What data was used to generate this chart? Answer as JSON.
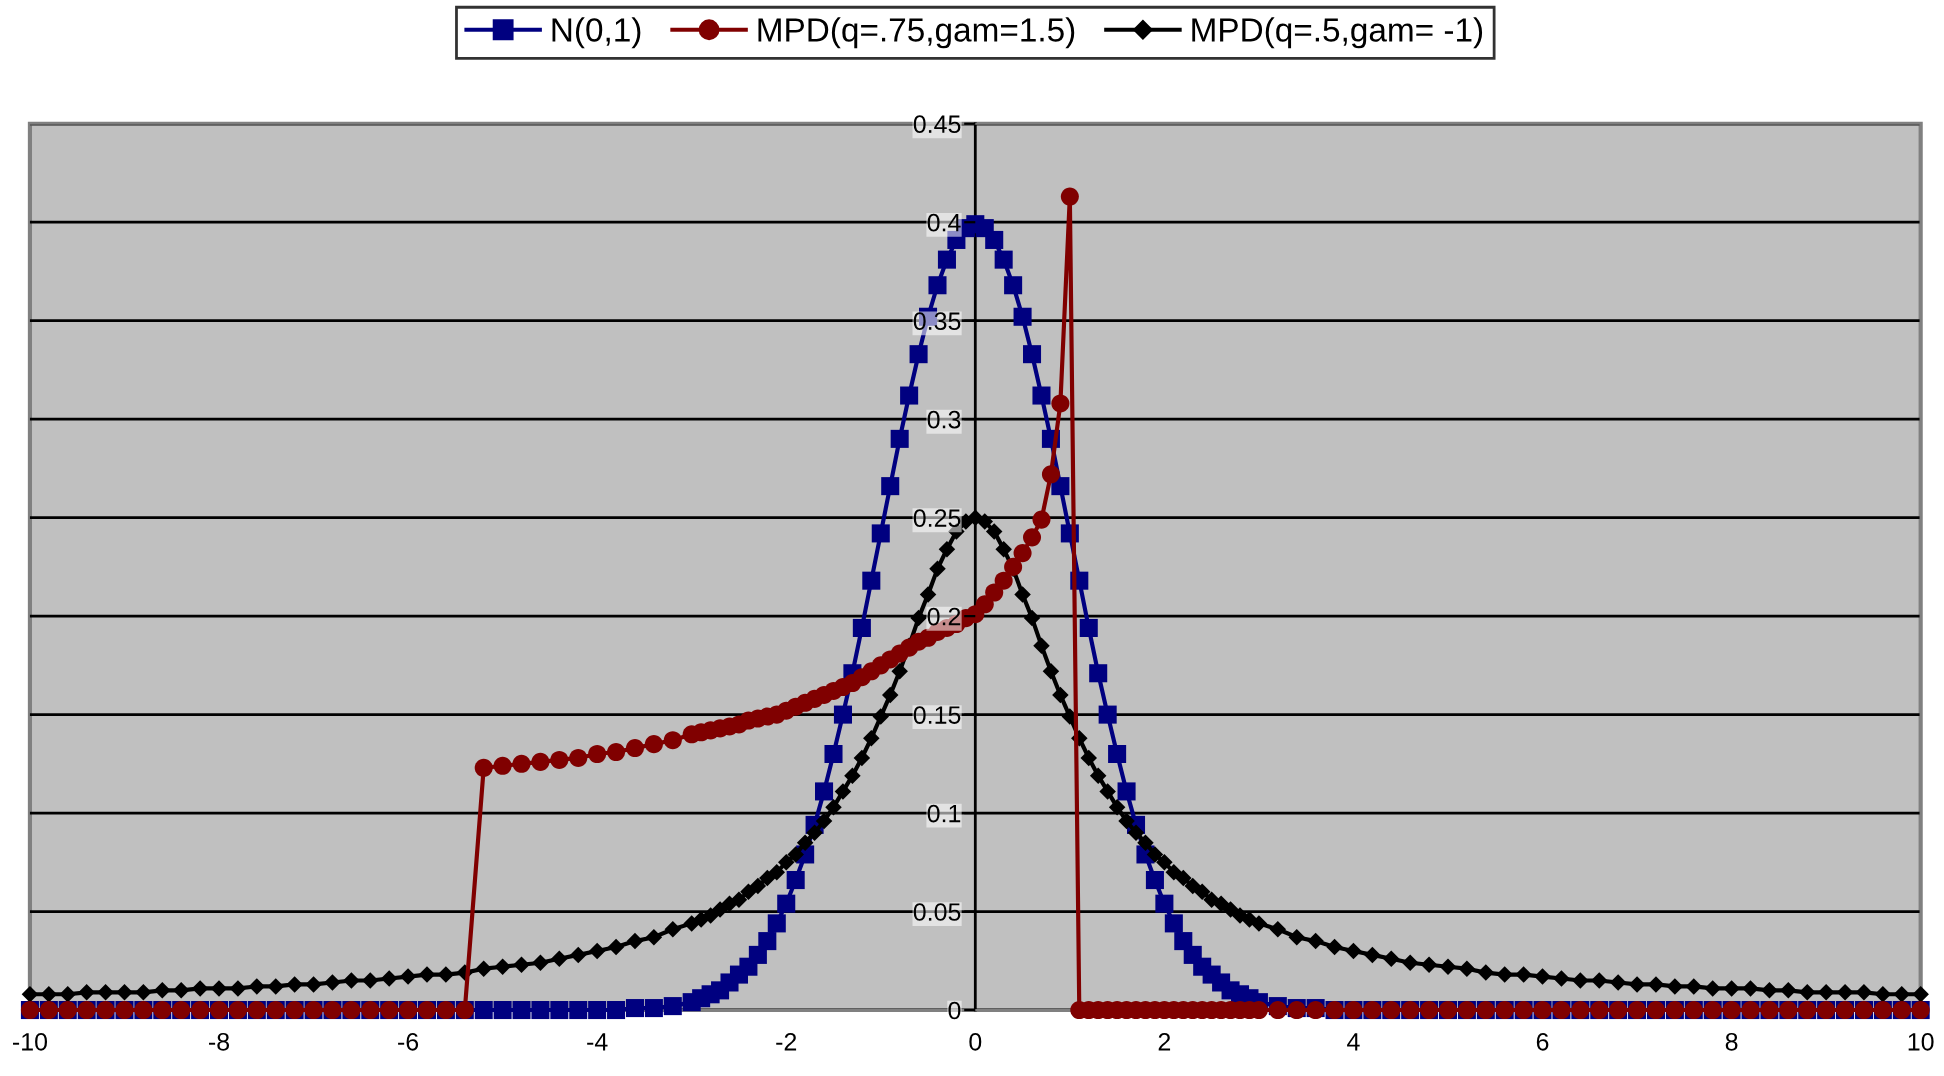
{
  "chart_data": {
    "type": "line",
    "x": [
      -10,
      -9.8,
      -9.6,
      -9.4,
      -9.2,
      -9,
      -8.8,
      -8.6,
      -8.4,
      -8.2,
      -8,
      -7.8,
      -7.6,
      -7.4,
      -7.2,
      -7,
      -6.8,
      -6.6,
      -6.4,
      -6.2,
      -6,
      -5.8,
      -5.6,
      -5.4,
      -5.2,
      -5,
      -4.8,
      -4.6,
      -4.4,
      -4.2,
      -4,
      -3.8,
      -3.6,
      -3.4,
      -3.2,
      -3,
      -2.9,
      -2.8,
      -2.7,
      -2.6,
      -2.5,
      -2.4,
      -2.3,
      -2.2,
      -2.1,
      -2,
      -1.9,
      -1.8,
      -1.7,
      -1.6,
      -1.5,
      -1.4,
      -1.3,
      -1.2,
      -1.1,
      -1,
      -0.9,
      -0.8,
      -0.7,
      -0.6,
      -0.5,
      -0.4,
      -0.3,
      -0.2,
      -0.1,
      0,
      0.1,
      0.2,
      0.3,
      0.4,
      0.5,
      0.6,
      0.7,
      0.8,
      0.9,
      1,
      1.1,
      1.2,
      1.3,
      1.4,
      1.5,
      1.6,
      1.7,
      1.8,
      1.9,
      2,
      2.1,
      2.2,
      2.3,
      2.4,
      2.5,
      2.6,
      2.7,
      2.8,
      2.9,
      3,
      3.2,
      3.4,
      3.6,
      3.8,
      4,
      4.2,
      4.4,
      4.6,
      4.8,
      5,
      5.2,
      5.4,
      5.6,
      5.8,
      6,
      6.2,
      6.4,
      6.6,
      6.8,
      7,
      7.2,
      7.4,
      7.6,
      7.8,
      8,
      8.2,
      8.4,
      8.6,
      8.8,
      9,
      9.2,
      9.4,
      9.6,
      9.8,
      10
    ],
    "series": [
      {
        "name": "N(0,1)",
        "color": "#000080",
        "marker": "square",
        "values": [
          0,
          0,
          0,
          0,
          0,
          0,
          0,
          0,
          0,
          0,
          0,
          0,
          0,
          0,
          0,
          0,
          0,
          0,
          0,
          0,
          0,
          0,
          0,
          0,
          0,
          0,
          0,
          0,
          0,
          0,
          0,
          0,
          0.001,
          0.001,
          0.002,
          0.004,
          0.006,
          0.008,
          0.01,
          0.014,
          0.018,
          0.022,
          0.028,
          0.035,
          0.044,
          0.054,
          0.066,
          0.079,
          0.094,
          0.111,
          0.13,
          0.15,
          0.171,
          0.194,
          0.218,
          0.242,
          0.266,
          0.29,
          0.312,
          0.333,
          0.352,
          0.368,
          0.381,
          0.391,
          0.397,
          0.399,
          0.397,
          0.391,
          0.381,
          0.368,
          0.352,
          0.333,
          0.312,
          0.29,
          0.266,
          0.242,
          0.218,
          0.194,
          0.171,
          0.15,
          0.13,
          0.111,
          0.094,
          0.079,
          0.066,
          0.054,
          0.044,
          0.035,
          0.028,
          0.022,
          0.018,
          0.014,
          0.01,
          0.008,
          0.006,
          0.004,
          0.002,
          0.001,
          0.001,
          0,
          0,
          0,
          0,
          0,
          0,
          0,
          0,
          0,
          0,
          0,
          0,
          0,
          0,
          0,
          0,
          0,
          0,
          0,
          0,
          0,
          0,
          0,
          0,
          0,
          0,
          0,
          0,
          0,
          0,
          0,
          0
        ]
      },
      {
        "name": "MPD(q=.75,gam=1.5)",
        "color": "#800000",
        "marker": "circle",
        "values": [
          0,
          0,
          0,
          0,
          0,
          0,
          0,
          0,
          0,
          0,
          0,
          0,
          0,
          0,
          0,
          0,
          0,
          0,
          0,
          0,
          0,
          0,
          0,
          0,
          0.123,
          0.124,
          0.125,
          0.126,
          0.127,
          0.128,
          0.13,
          0.131,
          0.133,
          0.135,
          0.137,
          0.14,
          0.141,
          0.142,
          0.143,
          0.144,
          0.145,
          0.147,
          0.148,
          0.149,
          0.15,
          0.152,
          0.154,
          0.156,
          0.158,
          0.16,
          0.162,
          0.164,
          0.166,
          0.169,
          0.172,
          0.175,
          0.178,
          0.181,
          0.184,
          0.187,
          0.189,
          0.192,
          0.194,
          0.196,
          0.199,
          0.201,
          0.206,
          0.212,
          0.218,
          0.225,
          0.232,
          0.24,
          0.249,
          0.272,
          0.308,
          0.413,
          0,
          0,
          0,
          0,
          0,
          0,
          0,
          0,
          0,
          0,
          0,
          0,
          0,
          0,
          0,
          0,
          0,
          0,
          0,
          0,
          0,
          0,
          0,
          0,
          0,
          0,
          0,
          0,
          0,
          0,
          0,
          0,
          0,
          0,
          0,
          0,
          0,
          0,
          0,
          0,
          0,
          0,
          0,
          0,
          0,
          0,
          0,
          0,
          0,
          0,
          0,
          0,
          0,
          0,
          0
        ]
      },
      {
        "name": "MPD(q=.5,gam= -1)",
        "color": "#000000",
        "marker": "diamond",
        "values": [
          0.008,
          0.008,
          0.008,
          0.009,
          0.009,
          0.009,
          0.009,
          0.01,
          0.01,
          0.011,
          0.011,
          0.011,
          0.012,
          0.012,
          0.013,
          0.013,
          0.014,
          0.015,
          0.015,
          0.016,
          0.017,
          0.018,
          0.018,
          0.019,
          0.021,
          0.022,
          0.023,
          0.024,
          0.026,
          0.028,
          0.03,
          0.032,
          0.035,
          0.037,
          0.041,
          0.044,
          0.046,
          0.048,
          0.051,
          0.054,
          0.056,
          0.06,
          0.063,
          0.067,
          0.07,
          0.075,
          0.079,
          0.085,
          0.09,
          0.096,
          0.103,
          0.111,
          0.119,
          0.128,
          0.138,
          0.149,
          0.16,
          0.172,
          0.185,
          0.199,
          0.211,
          0.224,
          0.234,
          0.243,
          0.248,
          0.25,
          0.248,
          0.243,
          0.234,
          0.224,
          0.211,
          0.199,
          0.185,
          0.172,
          0.16,
          0.149,
          0.138,
          0.128,
          0.119,
          0.111,
          0.103,
          0.096,
          0.09,
          0.085,
          0.079,
          0.075,
          0.07,
          0.067,
          0.063,
          0.06,
          0.056,
          0.054,
          0.051,
          0.048,
          0.046,
          0.044,
          0.041,
          0.037,
          0.035,
          0.032,
          0.03,
          0.028,
          0.026,
          0.024,
          0.023,
          0.022,
          0.021,
          0.019,
          0.018,
          0.018,
          0.017,
          0.016,
          0.015,
          0.015,
          0.014,
          0.013,
          0.013,
          0.012,
          0.012,
          0.011,
          0.011,
          0.011,
          0.01,
          0.01,
          0.009,
          0.009,
          0.009,
          0.009,
          0.008,
          0.008,
          0.008
        ]
      }
    ],
    "xlim": [
      -10,
      10
    ],
    "xticks": [
      -10,
      -8,
      -6,
      -4,
      -2,
      0,
      2,
      4,
      6,
      8,
      10
    ],
    "ylim": [
      0,
      0.45
    ],
    "yticks": [
      0,
      0.05,
      0.1,
      0.15,
      0.2,
      0.25,
      0.3,
      0.35,
      0.4,
      0.45
    ],
    "grid": "y",
    "legend": "top",
    "line_style": "solid"
  }
}
